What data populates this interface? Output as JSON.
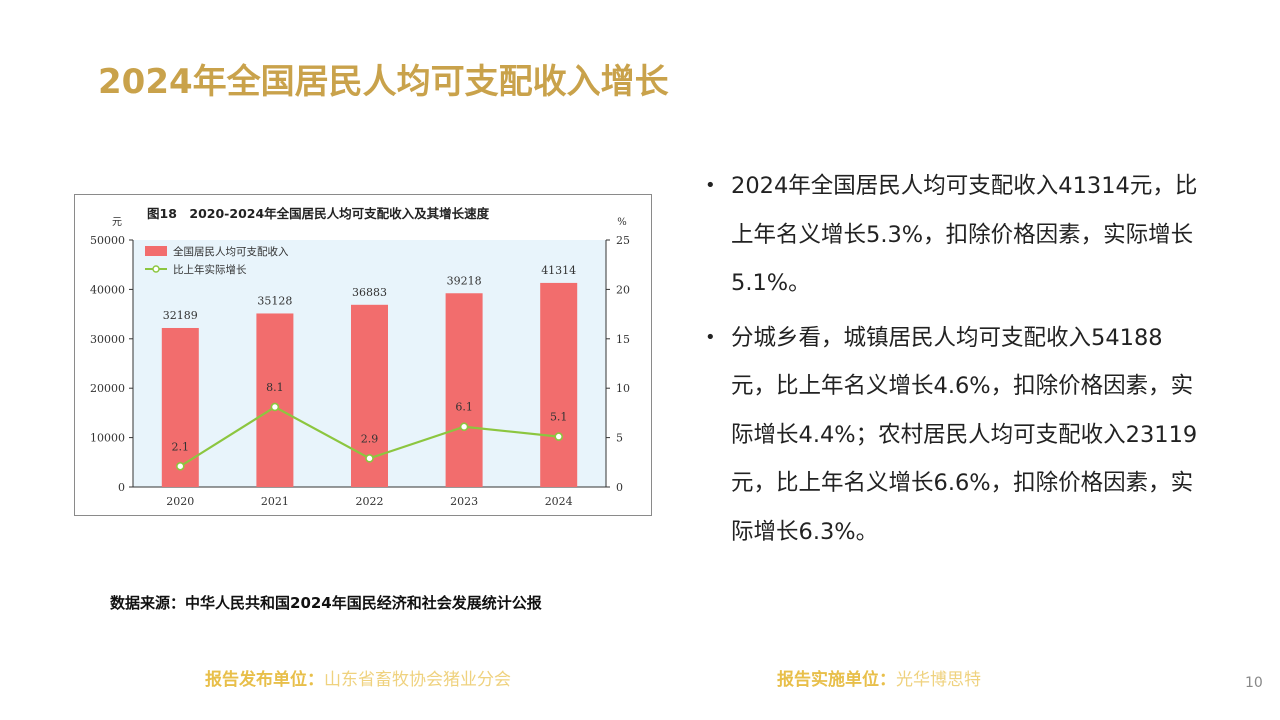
{
  "slide": {
    "title": "2024年全国居民人均可支配收入增长",
    "bullets": [
      "2024年全国居民人均可支配收入41314元，比上年名义增长5.3%，扣除价格因素，实际增长5.1%。",
      "分城乡看，城镇居民人均可支配收入54188元，比上年名义增长4.6%，扣除价格因素，实际增长4.4%；农村居民人均可支配收入23119元，比上年名义增长6.6%，扣除价格因素，实际增长6.3%。"
    ],
    "source": "数据来源：中华人民共和国2024年国民经济和社会发展统计公报",
    "footer": {
      "left_label": "报告发布单位：",
      "left_value": "山东省畜牧协会猪业分会",
      "right_label": "报告实施单位：",
      "right_value": "光华博思特"
    },
    "page_number": "10",
    "colors": {
      "title": "#c9a24b",
      "bar": "#f26d6d",
      "line": "#8cc63f",
      "plot_bg": "#e8f4fb"
    }
  },
  "chart_data": {
    "type": "bar",
    "title": "图18　2020-2024年全国居民人均可支配收入及其增长速度",
    "categories": [
      "2020",
      "2021",
      "2022",
      "2023",
      "2024"
    ],
    "series": [
      {
        "name": "全国居民人均可支配收入",
        "type": "bar",
        "axis": "left",
        "values": [
          32189,
          35128,
          36883,
          39218,
          41314
        ]
      },
      {
        "name": "比上年实际增长",
        "type": "line",
        "axis": "right",
        "values": [
          2.1,
          8.1,
          2.9,
          6.1,
          5.1
        ]
      }
    ],
    "ylabel": "元",
    "y2label": "%",
    "ylim": [
      0,
      50000
    ],
    "y2lim": [
      0,
      25
    ],
    "yticks": [
      0,
      10000,
      20000,
      30000,
      40000,
      50000
    ],
    "y2ticks": [
      0,
      5,
      10,
      15,
      20,
      25
    ],
    "legend": "top-left",
    "grid": false
  }
}
